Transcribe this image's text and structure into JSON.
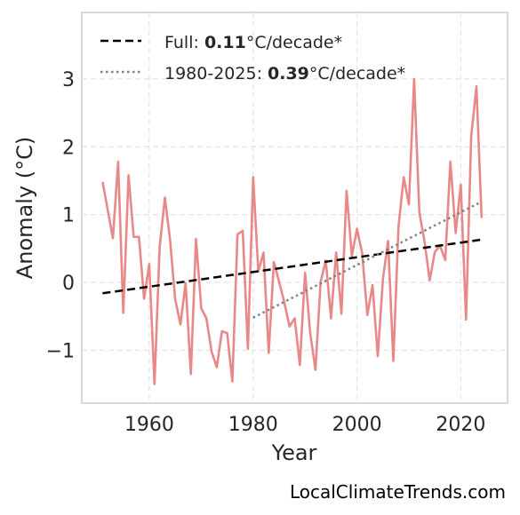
{
  "chart_data": {
    "type": "line",
    "xlabel": "Year",
    "ylabel": "Anomaly (°C)",
    "xlim": [
      1947,
      2029
    ],
    "ylim": [
      -1.78,
      3.98
    ],
    "xticks": [
      1960,
      1980,
      2000,
      2020
    ],
    "xtick_labels": [
      "1960",
      "1980",
      "2000",
      "2020"
    ],
    "yticks": [
      -1,
      0,
      1,
      2,
      3
    ],
    "ytick_labels": [
      "−1",
      "0",
      "1",
      "2",
      "3"
    ],
    "grid": true,
    "legend_position": "top-left",
    "series": [
      {
        "color": "#e88888",
        "style": "solid",
        "x": [
          1951,
          1952,
          1953,
          1954,
          1955,
          1956,
          1957,
          1958,
          1959,
          1960,
          1961,
          1962,
          1963,
          1964,
          1965,
          1966,
          1967,
          1968,
          1969,
          1970,
          1971,
          1972,
          1973,
          1974,
          1975,
          1976,
          1977,
          1978,
          1979,
          1980,
          1981,
          1982,
          1983,
          1984,
          1985,
          1986,
          1987,
          1988,
          1989,
          1990,
          1991,
          1992,
          1993,
          1994,
          1995,
          1996,
          1997,
          1998,
          1999,
          2000,
          2001,
          2002,
          2003,
          2004,
          2005,
          2006,
          2007,
          2008,
          2009,
          2010,
          2011,
          2012,
          2013,
          2014,
          2015,
          2016,
          2017,
          2018,
          2019,
          2020,
          2021,
          2022,
          2023,
          2024
        ],
        "y": [
          1.48,
          1.07,
          0.65,
          1.78,
          -0.45,
          1.58,
          0.67,
          0.67,
          -0.24,
          0.27,
          -1.5,
          0.52,
          1.25,
          0.63,
          -0.25,
          -0.62,
          -0.01,
          -1.35,
          0.64,
          -0.38,
          -0.53,
          -1.02,
          -1.25,
          -0.72,
          -0.75,
          -1.46,
          0.71,
          0.76,
          -0.98,
          1.55,
          0.16,
          0.44,
          -1.04,
          0.3,
          0.01,
          -0.29,
          -0.65,
          -0.53,
          -1.22,
          0.14,
          -0.75,
          -1.29,
          0.01,
          0.32,
          -0.53,
          0.44,
          -0.46,
          1.35,
          0.39,
          0.79,
          0.43,
          -0.48,
          -0.04,
          -1.09,
          0.05,
          0.61,
          -1.16,
          0.82,
          1.55,
          1.15,
          3.0,
          1.04,
          0.61,
          0.03,
          0.45,
          0.54,
          0.33,
          1.78,
          0.73,
          1.44,
          -0.55,
          2.15,
          2.89,
          0.95
        ]
      },
      {
        "name": "Full",
        "color": "#000000",
        "style": "dashed",
        "x": [
          1951,
          2024
        ],
        "y": [
          -0.16,
          0.63
        ]
      },
      {
        "name": "1980-2025",
        "color": "#808080",
        "style": "dotted",
        "x": [
          1980,
          2024
        ],
        "y": [
          -0.52,
          1.19
        ]
      }
    ],
    "legend": [
      {
        "prefix": "Full: ",
        "value": "0.11",
        "suffix": "°C/decade*"
      },
      {
        "prefix": "1980-2025: ",
        "value": "0.39",
        "suffix": "°C/decade*"
      }
    ]
  },
  "watermark": "LocalClimateTrends.com"
}
